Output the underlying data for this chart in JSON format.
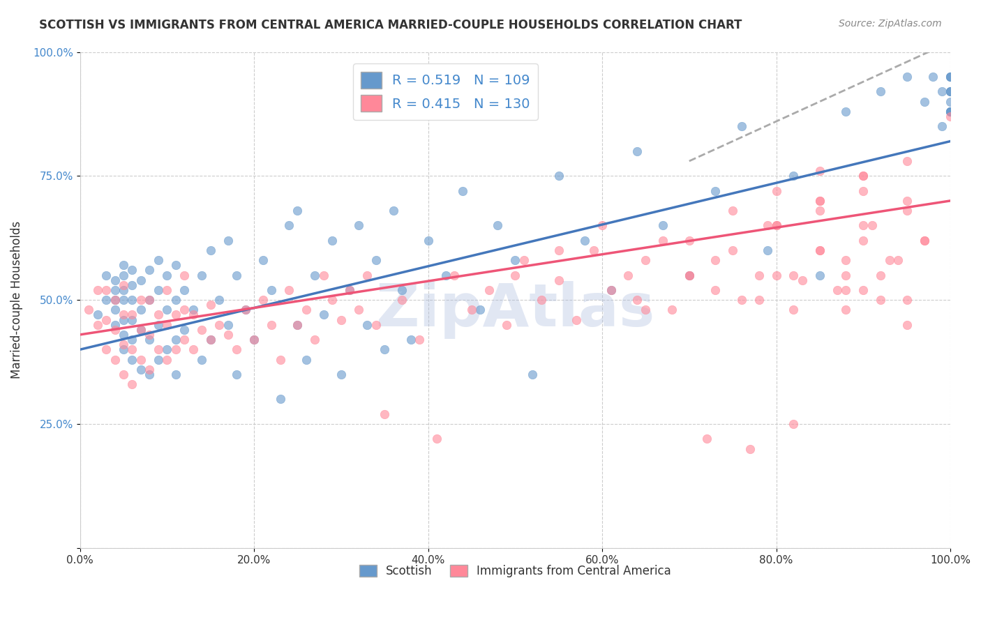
{
  "title": "SCOTTISH VS IMMIGRANTS FROM CENTRAL AMERICA MARRIED-COUPLE HOUSEHOLDS CORRELATION CHART",
  "source": "Source: ZipAtlas.com",
  "ylabel": "Married-couple Households",
  "xlabel": "",
  "xlim": [
    0.0,
    1.0
  ],
  "ylim": [
    0.0,
    1.0
  ],
  "xticks": [
    0.0,
    0.2,
    0.4,
    0.6,
    0.8,
    1.0
  ],
  "yticks": [
    0.0,
    0.25,
    0.5,
    0.75,
    1.0
  ],
  "xtick_labels": [
    "0.0%",
    "20.0%",
    "40.0%",
    "60.0%",
    "80.0%",
    "100.0%"
  ],
  "ytick_labels": [
    "",
    "25.0%",
    "50.0%",
    "75.0%",
    "100.0%"
  ],
  "legend_labels": [
    "Scottish",
    "Immigrants from Central America"
  ],
  "blue_R": "0.519",
  "blue_N": "109",
  "pink_R": "0.415",
  "pink_N": "130",
  "blue_color": "#6699CC",
  "pink_color": "#FF8899",
  "blue_line_color": "#4477BB",
  "pink_line_color": "#EE5577",
  "scatter_alpha": 0.6,
  "scatter_size": 80,
  "watermark": "ZipAtlas",
  "watermark_color": "#AABBDD",
  "watermark_alpha": 0.35,
  "blue_scatter_x": [
    0.02,
    0.03,
    0.03,
    0.04,
    0.04,
    0.04,
    0.04,
    0.04,
    0.05,
    0.05,
    0.05,
    0.05,
    0.05,
    0.05,
    0.05,
    0.06,
    0.06,
    0.06,
    0.06,
    0.06,
    0.06,
    0.07,
    0.07,
    0.07,
    0.07,
    0.08,
    0.08,
    0.08,
    0.08,
    0.09,
    0.09,
    0.09,
    0.09,
    0.1,
    0.1,
    0.1,
    0.11,
    0.11,
    0.11,
    0.11,
    0.12,
    0.12,
    0.13,
    0.14,
    0.14,
    0.15,
    0.15,
    0.16,
    0.17,
    0.17,
    0.18,
    0.18,
    0.19,
    0.2,
    0.21,
    0.22,
    0.23,
    0.24,
    0.25,
    0.25,
    0.26,
    0.27,
    0.28,
    0.29,
    0.3,
    0.31,
    0.32,
    0.33,
    0.34,
    0.35,
    0.36,
    0.37,
    0.38,
    0.4,
    0.42,
    0.44,
    0.46,
    0.48,
    0.5,
    0.52,
    0.55,
    0.58,
    0.61,
    0.64,
    0.67,
    0.7,
    0.73,
    0.76,
    0.79,
    0.82,
    0.85,
    0.88,
    0.92,
    0.95,
    0.97,
    0.98,
    0.99,
    0.99,
    1.0,
    1.0,
    1.0,
    1.0,
    1.0,
    1.0,
    1.0,
    1.0,
    1.0,
    1.0,
    1.0
  ],
  "blue_scatter_y": [
    0.47,
    0.5,
    0.55,
    0.45,
    0.48,
    0.5,
    0.52,
    0.54,
    0.4,
    0.43,
    0.46,
    0.5,
    0.52,
    0.55,
    0.57,
    0.38,
    0.42,
    0.46,
    0.5,
    0.53,
    0.56,
    0.36,
    0.44,
    0.48,
    0.54,
    0.35,
    0.42,
    0.5,
    0.56,
    0.38,
    0.45,
    0.52,
    0.58,
    0.4,
    0.48,
    0.55,
    0.35,
    0.42,
    0.5,
    0.57,
    0.44,
    0.52,
    0.48,
    0.38,
    0.55,
    0.42,
    0.6,
    0.5,
    0.45,
    0.62,
    0.35,
    0.55,
    0.48,
    0.42,
    0.58,
    0.52,
    0.3,
    0.65,
    0.45,
    0.68,
    0.38,
    0.55,
    0.47,
    0.62,
    0.35,
    0.52,
    0.65,
    0.45,
    0.58,
    0.4,
    0.68,
    0.52,
    0.42,
    0.62,
    0.55,
    0.72,
    0.48,
    0.65,
    0.58,
    0.35,
    0.75,
    0.62,
    0.52,
    0.8,
    0.65,
    0.55,
    0.72,
    0.85,
    0.6,
    0.75,
    0.55,
    0.88,
    0.92,
    0.95,
    0.9,
    0.95,
    0.85,
    0.92,
    0.88,
    0.95,
    0.92,
    0.88,
    0.95,
    0.92,
    0.88,
    0.92,
    0.88,
    0.95,
    0.9
  ],
  "pink_scatter_x": [
    0.01,
    0.02,
    0.02,
    0.03,
    0.03,
    0.03,
    0.04,
    0.04,
    0.04,
    0.05,
    0.05,
    0.05,
    0.05,
    0.06,
    0.06,
    0.06,
    0.07,
    0.07,
    0.07,
    0.08,
    0.08,
    0.08,
    0.09,
    0.09,
    0.1,
    0.1,
    0.1,
    0.11,
    0.11,
    0.12,
    0.12,
    0.12,
    0.13,
    0.13,
    0.14,
    0.15,
    0.15,
    0.16,
    0.17,
    0.18,
    0.19,
    0.2,
    0.21,
    0.22,
    0.23,
    0.24,
    0.25,
    0.26,
    0.27,
    0.28,
    0.29,
    0.3,
    0.31,
    0.32,
    0.33,
    0.34,
    0.35,
    0.37,
    0.39,
    0.41,
    0.43,
    0.45,
    0.47,
    0.49,
    0.51,
    0.53,
    0.55,
    0.57,
    0.59,
    0.61,
    0.63,
    0.65,
    0.67,
    0.7,
    0.73,
    0.76,
    0.79,
    0.82,
    0.85,
    0.88,
    0.91,
    0.94,
    0.97,
    1.0,
    0.5,
    0.55,
    0.6,
    0.65,
    0.7,
    0.75,
    0.8,
    0.85,
    0.9,
    0.95,
    0.7,
    0.75,
    0.8,
    0.85,
    0.9,
    0.95,
    0.8,
    0.85,
    0.9,
    0.95,
    0.9,
    0.85,
    0.9,
    0.95,
    0.8,
    0.85,
    0.9,
    0.88,
    0.92,
    0.95,
    0.88,
    0.93,
    0.97,
    0.82,
    0.87,
    0.92,
    0.78,
    0.83,
    0.88,
    0.72,
    0.77,
    0.82,
    0.68,
    0.73,
    0.78,
    0.64
  ],
  "pink_scatter_y": [
    0.48,
    0.45,
    0.52,
    0.4,
    0.46,
    0.52,
    0.38,
    0.44,
    0.5,
    0.35,
    0.41,
    0.47,
    0.53,
    0.33,
    0.4,
    0.47,
    0.38,
    0.44,
    0.5,
    0.36,
    0.43,
    0.5,
    0.4,
    0.47,
    0.38,
    0.45,
    0.52,
    0.4,
    0.47,
    0.42,
    0.48,
    0.55,
    0.4,
    0.47,
    0.44,
    0.42,
    0.49,
    0.45,
    0.43,
    0.4,
    0.48,
    0.42,
    0.5,
    0.45,
    0.38,
    0.52,
    0.45,
    0.48,
    0.42,
    0.55,
    0.5,
    0.46,
    0.52,
    0.48,
    0.55,
    0.45,
    0.27,
    0.5,
    0.42,
    0.22,
    0.55,
    0.48,
    0.52,
    0.45,
    0.58,
    0.5,
    0.54,
    0.46,
    0.6,
    0.52,
    0.55,
    0.48,
    0.62,
    0.55,
    0.58,
    0.5,
    0.65,
    0.55,
    0.6,
    0.52,
    0.65,
    0.58,
    0.62,
    0.87,
    0.55,
    0.6,
    0.65,
    0.58,
    0.62,
    0.68,
    0.65,
    0.7,
    0.75,
    0.78,
    0.55,
    0.6,
    0.65,
    0.7,
    0.75,
    0.5,
    0.55,
    0.6,
    0.65,
    0.7,
    0.62,
    0.68,
    0.72,
    0.68,
    0.72,
    0.76,
    0.52,
    0.48,
    0.5,
    0.45,
    0.55,
    0.58,
    0.62,
    0.48,
    0.52,
    0.55,
    0.5,
    0.54,
    0.58,
    0.22,
    0.2,
    0.25,
    0.48,
    0.52,
    0.55,
    0.5
  ],
  "blue_line_x": [
    0.0,
    1.0
  ],
  "blue_line_y": [
    0.4,
    0.82
  ],
  "pink_line_x": [
    0.0,
    1.0
  ],
  "pink_line_y": [
    0.43,
    0.7
  ],
  "dashed_line_x": [
    0.7,
    1.0
  ],
  "dashed_line_y": [
    0.78,
    1.02
  ]
}
